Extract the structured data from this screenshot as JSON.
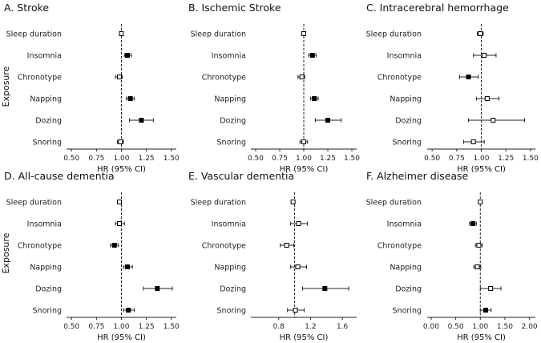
{
  "y_axis_label": "Exposure",
  "chart_data": [
    {
      "type": "forest",
      "title": "A. Stroke",
      "xlabel": "HR (95% CI)",
      "xlim": [
        0.45,
        1.55
      ],
      "xticks": [
        0.5,
        0.75,
        1.0,
        1.25,
        1.5
      ],
      "xtick_labels": [
        "0.50",
        "0.75",
        "1.00",
        "1.25",
        "1.50"
      ],
      "reference": 1.0,
      "categories": [
        "Sleep duration",
        "Insomnia",
        "Chronotype",
        "Napping",
        "Dozing",
        "Snoring"
      ],
      "estimates": [
        1.0,
        1.06,
        0.98,
        1.09,
        1.2,
        0.99
      ],
      "ci_low": [
        0.99,
        1.03,
        0.94,
        1.05,
        1.08,
        0.96
      ],
      "ci_high": [
        1.01,
        1.1,
        1.01,
        1.13,
        1.32,
        1.02
      ],
      "significant": [
        false,
        true,
        false,
        true,
        true,
        false
      ]
    },
    {
      "type": "forest",
      "title": "B. Ischemic Stroke",
      "xlabel": "HR (95% CI)",
      "xlim": [
        0.45,
        1.55
      ],
      "xticks": [
        0.5,
        0.75,
        1.0,
        1.25,
        1.5
      ],
      "xtick_labels": [
        "0.50",
        "0.75",
        "1.00",
        "1.25",
        "1.50"
      ],
      "reference": 1.0,
      "categories": [
        "Sleep duration",
        "Insomnia",
        "Chronotype",
        "Napping",
        "Dozing",
        "Snoring"
      ],
      "estimates": [
        1.0,
        1.09,
        0.98,
        1.11,
        1.25,
        1.0
      ],
      "ci_low": [
        0.99,
        1.05,
        0.94,
        1.07,
        1.12,
        0.96
      ],
      "ci_high": [
        1.01,
        1.13,
        1.01,
        1.15,
        1.39,
        1.04
      ],
      "significant": [
        false,
        true,
        false,
        true,
        true,
        false
      ]
    },
    {
      "type": "forest",
      "title": "C. Intracerebral hemorrhage",
      "xlabel": "HR (95% CI)",
      "xlim": [
        0.45,
        1.55
      ],
      "xticks": [
        0.5,
        0.75,
        1.0,
        1.25,
        1.5
      ],
      "xtick_labels": [
        "0.50",
        "0.75",
        "1.00",
        "1.25",
        "1.50"
      ],
      "reference": 1.0,
      "categories": [
        "Sleep duration",
        "Insomnia",
        "Chronotype",
        "Napping",
        "Dozing",
        "Snoring"
      ],
      "estimates": [
        0.99,
        1.03,
        0.87,
        1.06,
        1.12,
        0.92
      ],
      "ci_low": [
        0.96,
        0.92,
        0.78,
        0.95,
        0.87,
        0.82
      ],
      "ci_high": [
        1.02,
        1.15,
        0.97,
        1.18,
        1.44,
        1.03
      ],
      "significant": [
        false,
        false,
        true,
        false,
        false,
        false
      ]
    },
    {
      "type": "forest",
      "title": "D. All-cause dementia",
      "xlabel": "HR (95% CI)",
      "xlim": [
        0.45,
        1.55
      ],
      "xticks": [
        0.5,
        0.75,
        1.0,
        1.25,
        1.5
      ],
      "xtick_labels": [
        "0.50",
        "0.75",
        "1.00",
        "1.25",
        "1.50"
      ],
      "reference": 1.0,
      "categories": [
        "Sleep duration",
        "Insomnia",
        "Chronotype",
        "Napping",
        "Dozing",
        "Snoring"
      ],
      "estimates": [
        0.98,
        0.98,
        0.93,
        1.06,
        1.36,
        1.07
      ],
      "ci_low": [
        0.96,
        0.94,
        0.89,
        1.02,
        1.22,
        1.02
      ],
      "ci_high": [
        1.0,
        1.03,
        0.97,
        1.11,
        1.51,
        1.13
      ],
      "significant": [
        false,
        false,
        true,
        true,
        true,
        true
      ]
    },
    {
      "type": "forest",
      "title": "E. Vascular dementia",
      "xlabel": "HR (95% CI)",
      "xlim": [
        0.45,
        1.78
      ],
      "xticks": [
        0.8,
        1.2,
        1.6
      ],
      "xtick_labels": [
        "0.8",
        "1.2",
        "1.6"
      ],
      "reference": 1.0,
      "categories": [
        "Sleep duration",
        "Insomnia",
        "Chronotype",
        "Napping",
        "Dozing",
        "Snoring"
      ],
      "estimates": [
        0.98,
        1.05,
        0.9,
        1.04,
        1.38,
        1.01
      ],
      "ci_low": [
        0.96,
        0.95,
        0.82,
        0.95,
        1.1,
        0.91
      ],
      "ci_high": [
        1.0,
        1.16,
        0.99,
        1.15,
        1.68,
        1.12
      ],
      "significant": [
        false,
        false,
        false,
        false,
        true,
        false
      ]
    },
    {
      "type": "forest",
      "title": "F. Alzheimer disease",
      "xlabel": "HR (95% CI)",
      "xlim": [
        -0.08,
        2.12
      ],
      "xticks": [
        0.0,
        0.5,
        1.0,
        1.5,
        2.0
      ],
      "xtick_labels": [
        "0.00",
        "0.50",
        "1.00",
        "1.50",
        "2.00"
      ],
      "reference": 1.0,
      "categories": [
        "Sleep duration",
        "Insomnia",
        "Chronotype",
        "Napping",
        "Dozing",
        "Snoring"
      ],
      "estimates": [
        1.0,
        0.85,
        0.97,
        0.94,
        1.21,
        1.11
      ],
      "ci_low": [
        0.98,
        0.78,
        0.9,
        0.87,
        1.0,
        1.0
      ],
      "ci_high": [
        1.02,
        0.92,
        1.04,
        1.01,
        1.42,
        1.22
      ],
      "significant": [
        false,
        true,
        false,
        false,
        false,
        true
      ]
    }
  ]
}
